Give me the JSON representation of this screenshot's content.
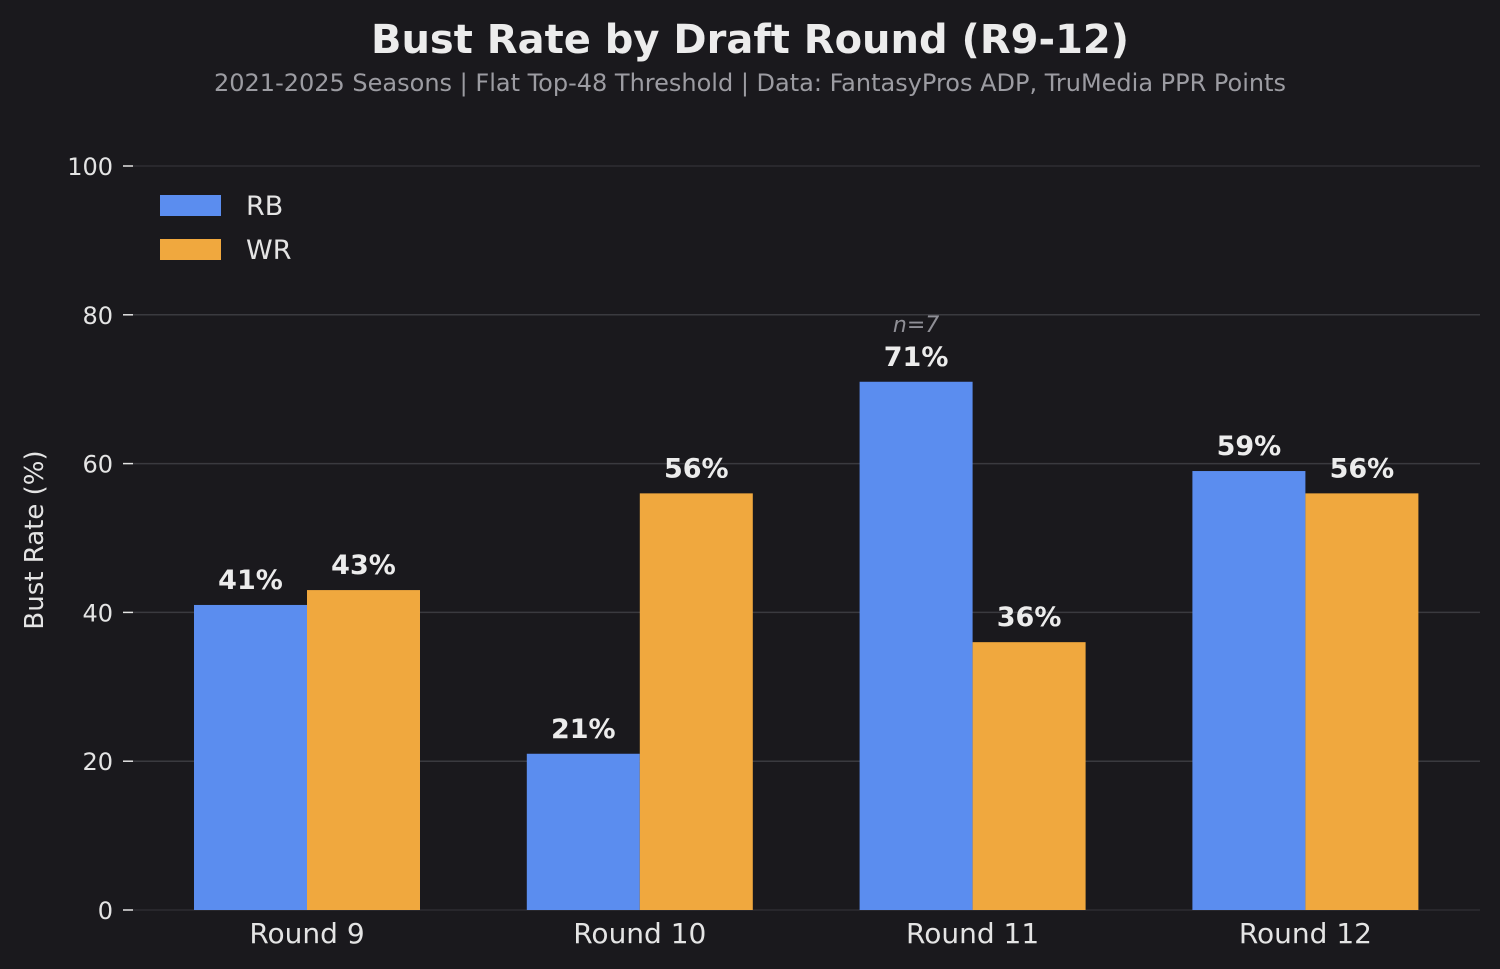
{
  "chart_data": {
    "type": "bar",
    "title": "Bust Rate by Draft Round (R9-12)",
    "subtitle": "2021-2025 Seasons  |  Flat Top-48 Threshold  |  Data: FantasyPros ADP, TruMedia PPR Points",
    "xlabel": "",
    "ylabel": "Bust Rate (%)",
    "ylim": [
      0,
      100
    ],
    "yticks": [
      0,
      20,
      40,
      60,
      80,
      100
    ],
    "categories": [
      "Round 9",
      "Round 10",
      "Round 11",
      "Round 12"
    ],
    "series": [
      {
        "name": "RB",
        "color": "#5b8def",
        "values": [
          41,
          21,
          71,
          59
        ],
        "labels": [
          "41%",
          "21%",
          "71%",
          "59%"
        ]
      },
      {
        "name": "WR",
        "color": "#f0a83e",
        "values": [
          43,
          56,
          36,
          56
        ],
        "labels": [
          "43%",
          "56%",
          "36%",
          "56%"
        ]
      }
    ],
    "annotations": [
      {
        "text": "n=7",
        "category": "Round 11",
        "series": "RB"
      }
    ],
    "grid": true,
    "legend_position": "top-left",
    "colors": {
      "background": "#1a191d",
      "grid": "#3a3a3f",
      "text": "#e8e8e8",
      "subtitle": "#9c9ca2"
    }
  }
}
